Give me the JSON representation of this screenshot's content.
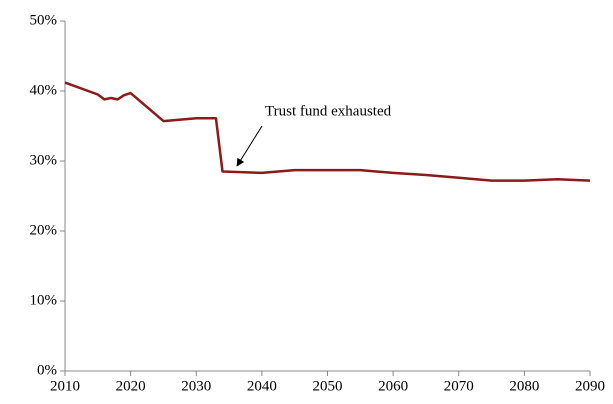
{
  "chart_data": {
    "type": "line",
    "annotation": "Trust fund exhausted",
    "x": [
      2010,
      2015,
      2016,
      2017,
      2018,
      2019,
      2020,
      2025,
      2030,
      2033,
      2034,
      2040,
      2045,
      2050,
      2055,
      2060,
      2065,
      2070,
      2075,
      2080,
      2085,
      2090
    ],
    "series": [
      {
        "color": "#8b1a1a",
        "values": [
          41.2,
          39.5,
          38.8,
          39.0,
          38.8,
          39.4,
          39.7,
          35.7,
          36.1,
          36.1,
          28.5,
          28.3,
          28.7,
          28.7,
          28.7,
          28.3,
          28.0,
          27.6,
          27.2,
          27.2,
          27.4,
          27.2
        ]
      }
    ],
    "xlim": [
      2010,
      2090
    ],
    "xticks": [
      2010,
      2020,
      2030,
      2040,
      2050,
      2060,
      2070,
      2080,
      2090
    ],
    "ylim": [
      0,
      50
    ],
    "yticks": [
      {
        "value": 0,
        "label": "0%"
      },
      {
        "value": 10,
        "label": "10%"
      },
      {
        "value": 20,
        "label": "20%"
      },
      {
        "value": 30,
        "label": "30%"
      },
      {
        "value": 40,
        "label": "40%"
      },
      {
        "value": 50,
        "label": "50%"
      }
    ],
    "grid": false
  }
}
